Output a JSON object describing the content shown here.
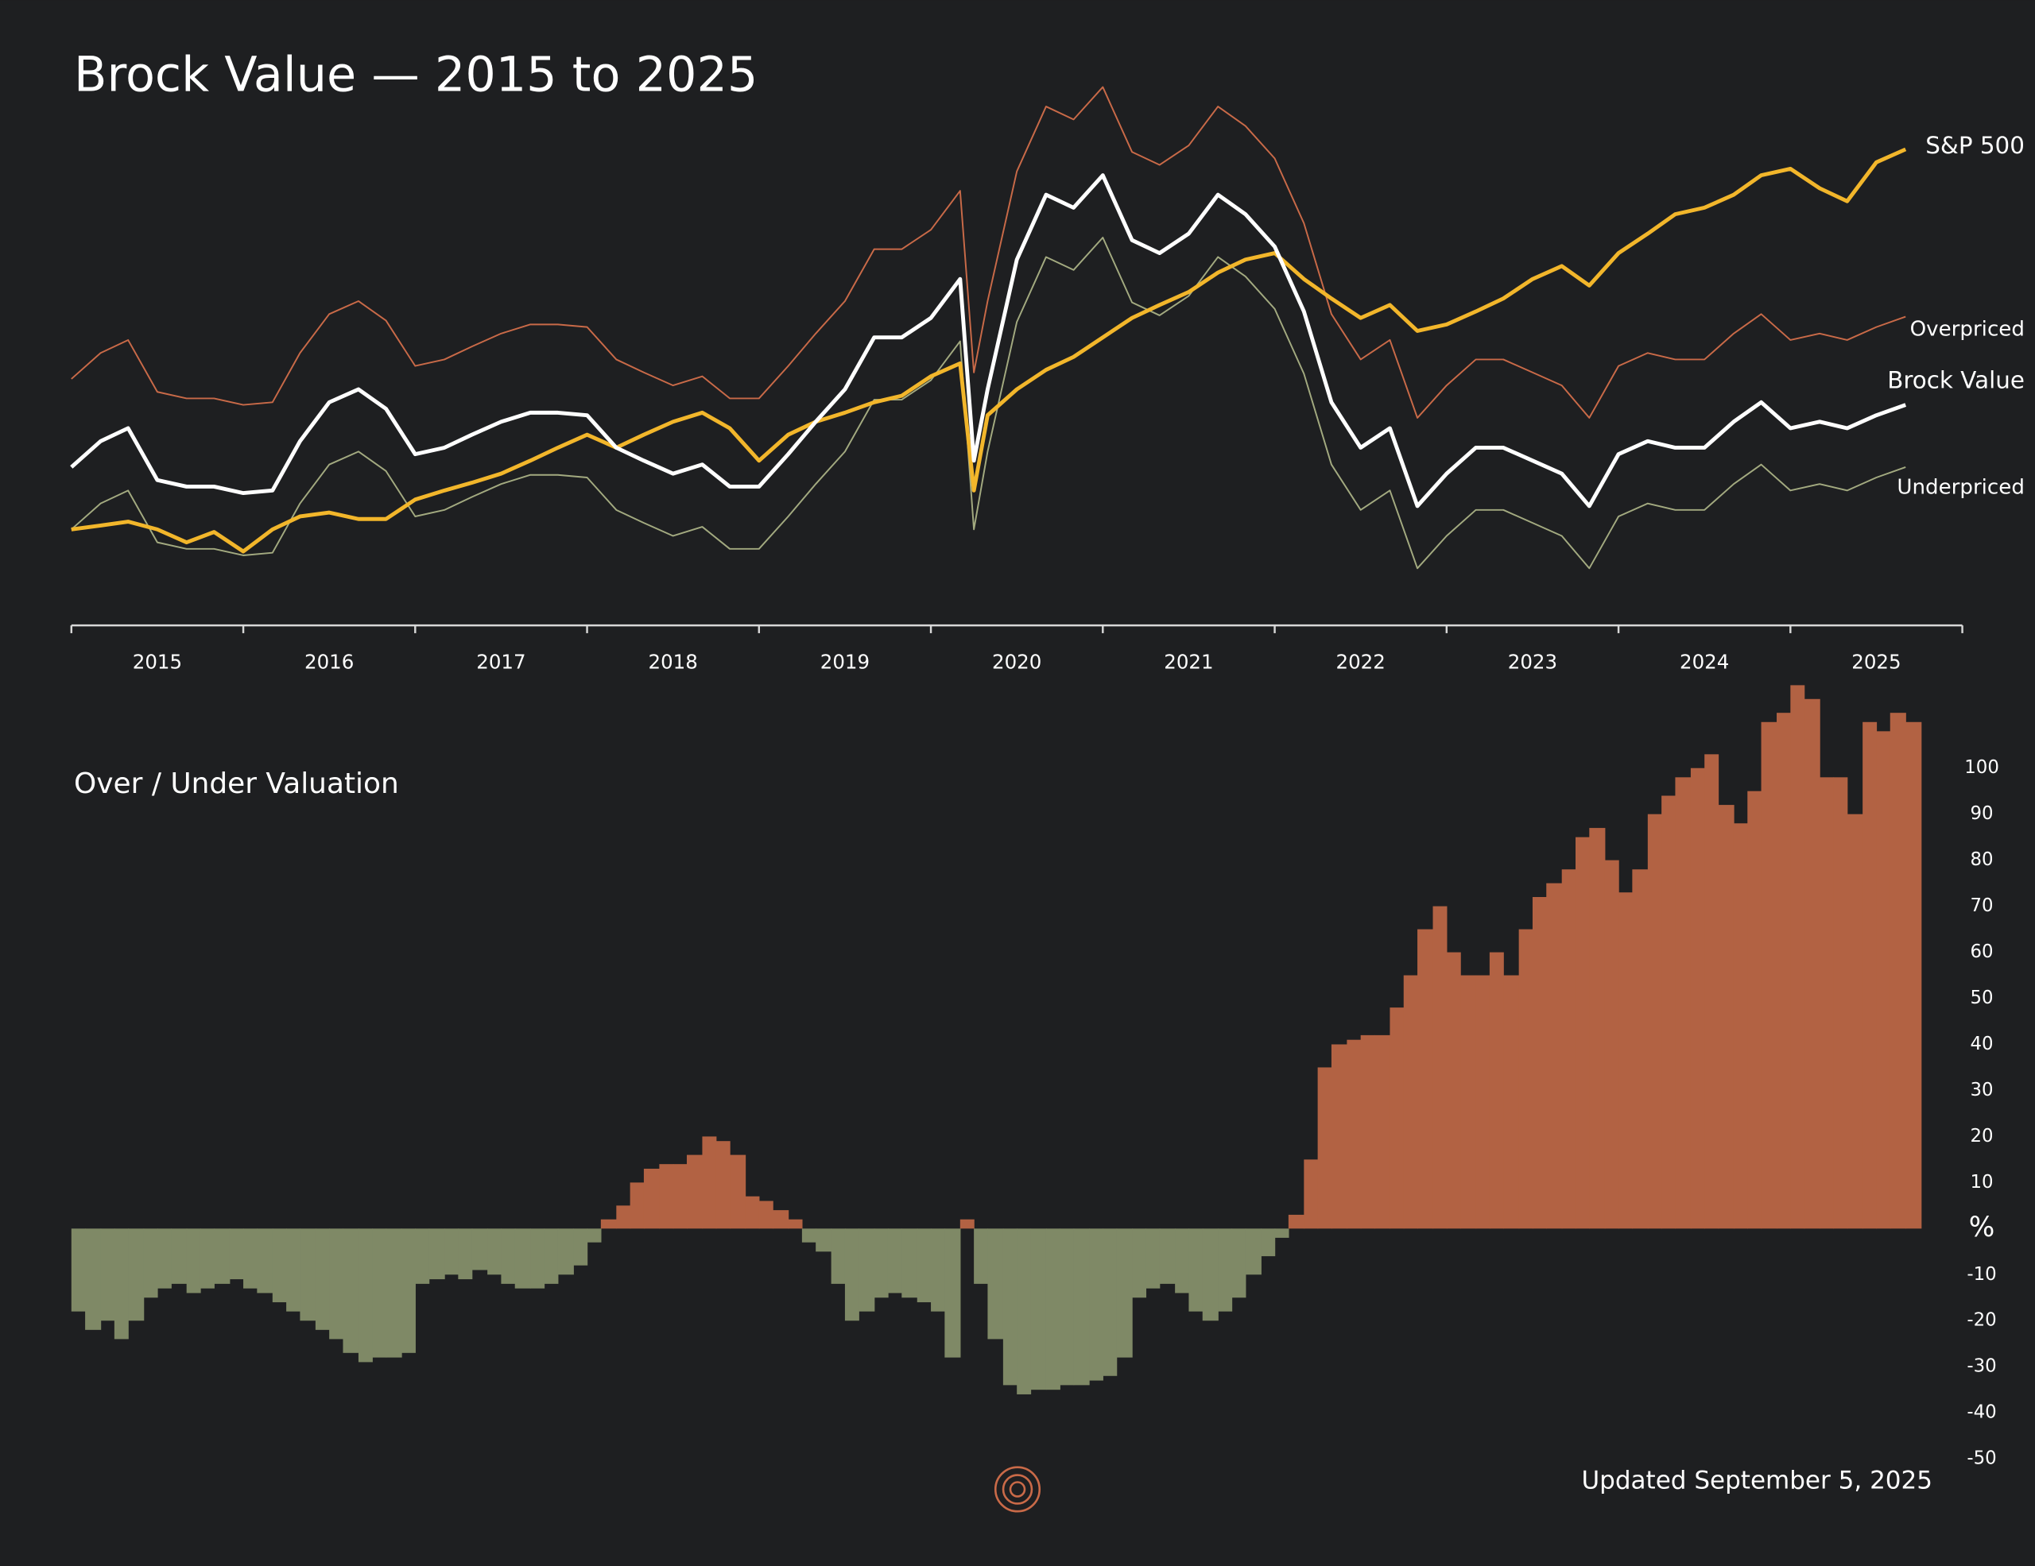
{
  "chart_data": [
    {
      "type": "line",
      "title": "Brock Value — 2015 to 2025",
      "x": [
        2015,
        2015.17,
        2015.33,
        2015.5,
        2015.67,
        2015.83,
        2016,
        2016.17,
        2016.33,
        2016.5,
        2016.67,
        2016.83,
        2017,
        2017.17,
        2017.33,
        2017.5,
        2017.67,
        2017.83,
        2018,
        2018.17,
        2018.33,
        2018.5,
        2018.67,
        2018.83,
        2019,
        2019.17,
        2019.33,
        2019.5,
        2019.67,
        2019.83,
        2020,
        2020.17,
        2020.25,
        2020.33,
        2020.5,
        2020.67,
        2020.83,
        2021,
        2021.17,
        2021.33,
        2021.5,
        2021.67,
        2021.83,
        2022,
        2022.17,
        2022.33,
        2022.5,
        2022.67,
        2022.83,
        2023,
        2023.17,
        2023.33,
        2023.5,
        2023.67,
        2023.83,
        2024,
        2024.17,
        2024.33,
        2024.5,
        2024.67,
        2024.83,
        2025,
        2025.17,
        2025.33,
        2025.5,
        2025.67
      ],
      "series": [
        {
          "name": "S&P 500",
          "color": "#f2b62b",
          "width": 3,
          "values": [
            62,
            65,
            68,
            62,
            52,
            60,
            45,
            62,
            72,
            75,
            70,
            70,
            85,
            92,
            98,
            105,
            115,
            125,
            135,
            125,
            135,
            145,
            152,
            140,
            115,
            135,
            145,
            152,
            160,
            165,
            180,
            190,
            92,
            150,
            170,
            185,
            195,
            210,
            225,
            235,
            245,
            260,
            270,
            275,
            255,
            240,
            225,
            235,
            215,
            220,
            230,
            240,
            255,
            265,
            250,
            275,
            290,
            305,
            310,
            320,
            335,
            340,
            325,
            315,
            345,
            355
          ]
        },
        {
          "name": "Overpriced",
          "color": "#c96a48",
          "width": 1.2,
          "values": [
            178,
            198,
            208,
            168,
            163,
            163,
            158,
            160,
            198,
            228,
            238,
            223,
            188,
            193,
            203,
            213,
            220,
            220,
            218,
            193,
            183,
            173,
            180,
            163,
            163,
            188,
            213,
            238,
            278,
            278,
            293,
            323,
            183,
            238,
            338,
            388,
            378,
            403,
            353,
            343,
            358,
            388,
            373,
            348,
            298,
            228,
            193,
            208,
            148,
            173,
            193,
            193,
            183,
            173,
            148,
            188,
            198,
            193,
            193,
            213,
            228,
            208,
            213,
            208,
            218,
            226
          ]
        },
        {
          "name": "Brock Value",
          "color": "#ffffff",
          "width": 3,
          "values": [
            110,
            130,
            140,
            100,
            95,
            95,
            90,
            92,
            130,
            160,
            170,
            155,
            120,
            125,
            135,
            145,
            152,
            152,
            150,
            125,
            115,
            105,
            112,
            95,
            95,
            120,
            145,
            170,
            210,
            210,
            225,
            255,
            115,
            170,
            270,
            320,
            310,
            335,
            285,
            275,
            290,
            320,
            305,
            280,
            230,
            160,
            125,
            140,
            80,
            105,
            125,
            125,
            115,
            105,
            80,
            120,
            130,
            125,
            125,
            145,
            160,
            140,
            145,
            140,
            150,
            158
          ]
        },
        {
          "name": "Underpriced",
          "color": "#a3aa80",
          "width": 1.2,
          "values": [
            62,
            82,
            92,
            52,
            47,
            47,
            42,
            44,
            82,
            112,
            122,
            107,
            72,
            77,
            87,
            97,
            104,
            104,
            102,
            77,
            67,
            57,
            64,
            47,
            47,
            72,
            97,
            122,
            162,
            162,
            177,
            207,
            62,
            122,
            222,
            272,
            262,
            287,
            237,
            227,
            242,
            272,
            257,
            232,
            182,
            112,
            77,
            92,
            32,
            57,
            77,
            77,
            67,
            57,
            32,
            72,
            82,
            77,
            77,
            97,
            112,
            92,
            97,
            92,
            102,
            110
          ]
        }
      ],
      "xlim": [
        2015,
        2026
      ],
      "ylim": [
        0,
        420
      ],
      "xticks": [
        2015,
        2016,
        2017,
        2018,
        2019,
        2020,
        2021,
        2022,
        2023,
        2024,
        2025
      ]
    },
    {
      "type": "bar",
      "title": "Over / Under Valuation",
      "x": [
        2015,
        2015.08,
        2015.17,
        2015.25,
        2015.33,
        2015.42,
        2015.5,
        2015.58,
        2015.67,
        2015.75,
        2015.83,
        2015.92,
        2016,
        2016.08,
        2016.17,
        2016.25,
        2016.33,
        2016.42,
        2016.5,
        2016.58,
        2016.67,
        2016.75,
        2016.83,
        2016.92,
        2017,
        2017.08,
        2017.17,
        2017.25,
        2017.33,
        2017.42,
        2017.5,
        2017.58,
        2017.67,
        2017.75,
        2017.83,
        2017.92,
        2018,
        2018.08,
        2018.17,
        2018.25,
        2018.33,
        2018.42,
        2018.5,
        2018.58,
        2018.67,
        2018.75,
        2018.83,
        2018.92,
        2019,
        2019.08,
        2019.17,
        2019.25,
        2019.33,
        2019.42,
        2019.5,
        2019.58,
        2019.67,
        2019.75,
        2019.83,
        2019.92,
        2020,
        2020.08,
        2020.17,
        2020.25,
        2020.33,
        2020.42,
        2020.5,
        2020.58,
        2020.67,
        2020.75,
        2020.83,
        2020.92,
        2021,
        2021.08,
        2021.17,
        2021.25,
        2021.33,
        2021.42,
        2021.5,
        2021.58,
        2021.67,
        2021.75,
        2021.83,
        2021.92,
        2022,
        2022.08,
        2022.17,
        2022.25,
        2022.33,
        2022.42,
        2022.5,
        2022.58,
        2022.67,
        2022.75,
        2022.83,
        2022.92,
        2023,
        2023.08,
        2023.17,
        2023.25,
        2023.33,
        2023.42,
        2023.5,
        2023.58,
        2023.67,
        2023.75,
        2023.83,
        2023.92,
        2024,
        2024.08,
        2024.17,
        2024.25,
        2024.33,
        2024.42,
        2024.5,
        2024.58,
        2024.67,
        2024.75,
        2024.83,
        2024.92,
        2025,
        2025.08,
        2025.17,
        2025.25,
        2025.33,
        2025.42,
        2025.5,
        2025.58,
        2025.67
      ],
      "values": [
        -18,
        -22,
        -20,
        -24,
        -20,
        -15,
        -13,
        -12,
        -14,
        -13,
        -12,
        -11,
        -13,
        -14,
        -16,
        -18,
        -20,
        -22,
        -24,
        -27,
        -29,
        -28,
        -28,
        -27,
        -12,
        -11,
        -10,
        -11,
        -9,
        -10,
        -12,
        -13,
        -13,
        -12,
        -10,
        -8,
        -3,
        2,
        5,
        10,
        13,
        14,
        14,
        16,
        20,
        19,
        16,
        7,
        6,
        4,
        2,
        -3,
        -5,
        -12,
        -20,
        -18,
        -15,
        -14,
        -15,
        -16,
        -18,
        -28,
        2,
        -12,
        -24,
        -34,
        -36,
        -35,
        -35,
        -34,
        -34,
        -33,
        -32,
        -28,
        -15,
        -13,
        -12,
        -14,
        -18,
        -20,
        -18,
        -15,
        -10,
        -6,
        -2,
        3,
        15,
        35,
        40,
        41,
        42,
        42,
        48,
        55,
        65,
        70,
        60,
        55,
        55,
        60,
        55,
        65,
        72,
        75,
        78,
        85,
        87,
        80,
        73,
        78,
        90,
        94,
        98,
        100,
        103,
        92,
        88,
        95,
        110,
        112,
        118,
        115,
        98,
        98,
        90,
        110,
        108,
        112,
        110
      ],
      "positive_color": "#b26243",
      "negative_color": "#7f8966",
      "xlim": [
        2015,
        2026
      ],
      "ylim": [
        -50,
        120
      ],
      "yticks": [
        -50,
        -40,
        -30,
        -20,
        -10,
        {
          "value": 0,
          "label": "%"
        },
        10,
        20,
        30,
        40,
        50,
        60,
        70,
        80,
        90,
        100
      ],
      "note": "Updated September 5, 2025"
    }
  ]
}
